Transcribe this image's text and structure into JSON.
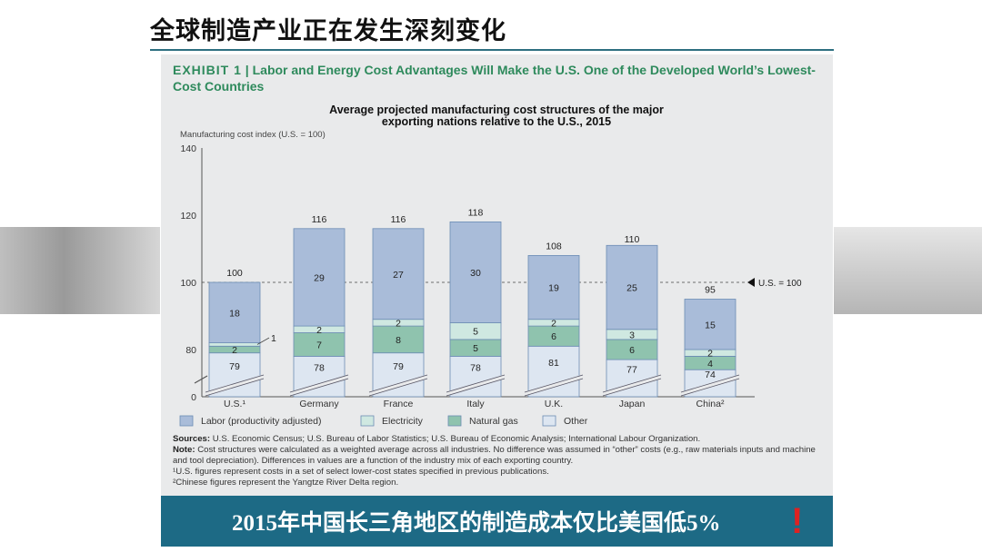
{
  "slide_title": "全球制造产业正在发生深刻变化",
  "exhibit": {
    "label": "EXHIBIT 1",
    "title": "Labor and Energy Cost Advantages Will Make the U.S. One of the Developed World’s Lowest-Cost Countries"
  },
  "banner": {
    "text": "2015年中国长三角地区的制造成本仅比美国低5%",
    "icon": "exclamation-icon"
  },
  "notes": {
    "sources_label": "Sources:",
    "sources": "U.S. Economic Census; U.S. Bureau of Labor Statistics; U.S. Bureau of Economic Analysis; International Labour Organization.",
    "note_label": "Note:",
    "note": "Cost structures were calculated as a weighted average across all industries. No difference was assumed in “other” costs (e.g., raw materials inputs and machine and tool depreciation). Differences in values are a function of the industry mix of each exporting country.",
    "footnote1": "¹U.S. figures represent costs in a set of select lower-cost states specified in previous publications.",
    "footnote2": "²Chinese figures represent the Yangtze River Delta region."
  },
  "chart_data": {
    "type": "bar",
    "stacked": true,
    "title": "Average projected manufacturing cost structures of the major exporting nations relative to the U.S., 2015",
    "title_lines": [
      "Average projected manufacturing cost structures of the major",
      "exporting nations relative to the U.S., 2015"
    ],
    "ylabel": "Manufacturing cost index (U.S. = 100)",
    "yticks": [
      "0",
      "80",
      "100",
      "120",
      "140"
    ],
    "ylim": [
      0,
      140
    ],
    "axis_break": true,
    "categories": [
      "U.S.¹",
      "Germany",
      "France",
      "Italy",
      "U.K.",
      "Japan",
      "China²"
    ],
    "series": [
      {
        "name": "Other",
        "color": "#dde6f1",
        "values": [
          79,
          78,
          79,
          78,
          81,
          77,
          74
        ]
      },
      {
        "name": "Natural gas",
        "color": "#8fc3ae",
        "values": [
          2,
          7,
          8,
          5,
          6,
          6,
          4
        ]
      },
      {
        "name": "Electricity",
        "color": "#cfe8e1",
        "values": [
          1,
          2,
          2,
          5,
          2,
          3,
          2
        ]
      },
      {
        "name": "Labor (productivity adjusted)",
        "color": "#a9bcd9",
        "values": [
          18,
          29,
          27,
          30,
          19,
          25,
          15
        ]
      }
    ],
    "legend_order": [
      "Labor (productivity adjusted)",
      "Electricity",
      "Natural gas",
      "Other"
    ],
    "totals": [
      100,
      116,
      116,
      118,
      108,
      110,
      95
    ],
    "reference_line": {
      "value": 100,
      "label": "U.S. = 100"
    }
  }
}
